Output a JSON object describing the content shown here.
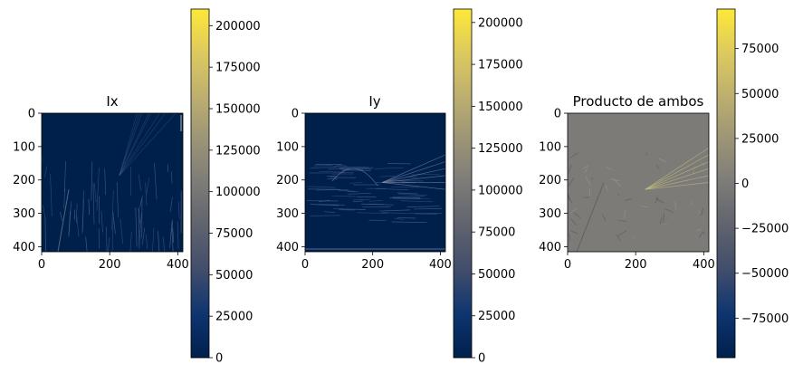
{
  "chart_data": [
    {
      "type": "heatmap",
      "title": "Ix",
      "xlabel": "",
      "ylabel": "",
      "xlim": [
        0,
        415
      ],
      "ylim": [
        415,
        0
      ],
      "xticks": [
        0,
        200,
        400
      ],
      "yticks": [
        0,
        100,
        200,
        300,
        400
      ],
      "x_tick_labels": [
        "0",
        "200",
        "400"
      ],
      "y_tick_labels": [
        "0",
        "100",
        "200",
        "300",
        "400"
      ],
      "colormap": "cividis",
      "colorbar": {
        "range": [
          0,
          210000
        ],
        "ticks": [
          0,
          25000,
          50000,
          75000,
          100000,
          125000,
          150000,
          175000,
          200000
        ],
        "tick_labels": [
          "0",
          "25000",
          "50000",
          "75000",
          "100000",
          "125000",
          "150000",
          "175000",
          "200000"
        ]
      },
      "background_value": 0,
      "pattern": "vertical-edges"
    },
    {
      "type": "heatmap",
      "title": "Iy",
      "xlabel": "",
      "ylabel": "",
      "xlim": [
        0,
        415
      ],
      "ylim": [
        415,
        0
      ],
      "xticks": [
        0,
        200,
        400
      ],
      "yticks": [
        0,
        100,
        200,
        300,
        400
      ],
      "x_tick_labels": [
        "0",
        "200",
        "400"
      ],
      "y_tick_labels": [
        "0",
        "100",
        "200",
        "300",
        "400"
      ],
      "colormap": "cividis",
      "colorbar": {
        "range": [
          0,
          208000
        ],
        "ticks": [
          0,
          25000,
          50000,
          75000,
          100000,
          125000,
          150000,
          175000,
          200000
        ],
        "tick_labels": [
          "0",
          "25000",
          "50000",
          "75000",
          "100000",
          "125000",
          "150000",
          "175000",
          "200000"
        ]
      },
      "background_value": 0,
      "pattern": "horizontal-edges"
    },
    {
      "type": "heatmap",
      "title": "Producto de ambos",
      "xlabel": "",
      "ylabel": "",
      "xlim": [
        0,
        415
      ],
      "ylim": [
        415,
        0
      ],
      "xticks": [
        0,
        200,
        400
      ],
      "yticks": [
        0,
        100,
        200,
        300,
        400
      ],
      "x_tick_labels": [
        "0",
        "200",
        "400"
      ],
      "y_tick_labels": [
        "0",
        "100",
        "200",
        "300",
        "400"
      ],
      "colormap": "cividis",
      "colorbar": {
        "range": [
          -97000,
          97000
        ],
        "ticks": [
          -75000,
          -50000,
          -25000,
          0,
          25000,
          50000,
          75000
        ],
        "tick_labels": [
          "−75000",
          "−50000",
          "−25000",
          "0",
          "25000",
          "50000",
          "75000"
        ]
      },
      "background_value": 0,
      "pattern": "mixed-edges"
    }
  ]
}
